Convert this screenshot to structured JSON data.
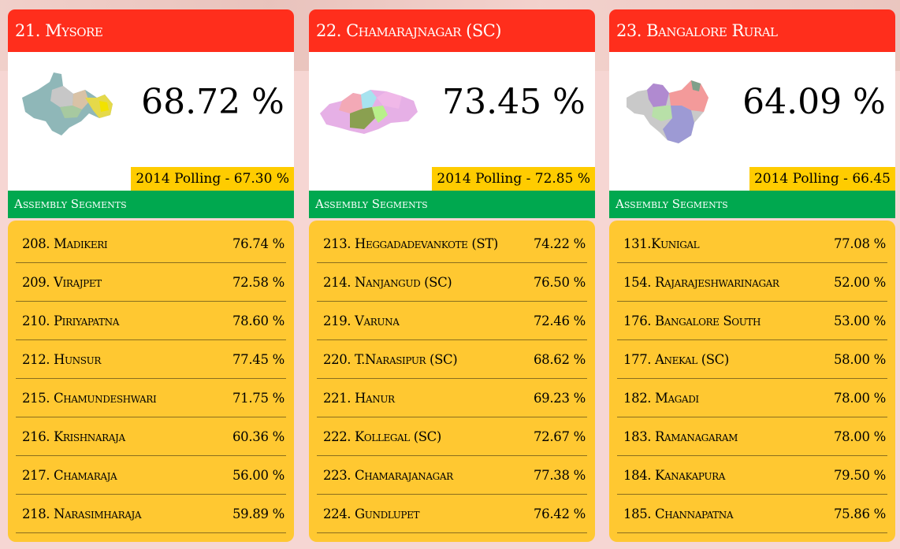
{
  "constituencies": [
    {
      "title": "21. Mysore",
      "turnout": "68.72 %",
      "polling_2014": "2014 Polling - 67.30 %",
      "segments_heading": "Assembly Segments",
      "map_icon": "mysore-map-icon",
      "segments": [
        {
          "name": "208. Madikeri",
          "value": "76.74 %"
        },
        {
          "name": "209. Virajpet",
          "value": "72.58 %"
        },
        {
          "name": "210. Piriyapatna",
          "value": "78.60 %"
        },
        {
          "name": "212. Hunsur",
          "value": "77.45 %"
        },
        {
          "name": "215. Chamundeshwari",
          "value": "71.75 %"
        },
        {
          "name": "216. Krishnaraja",
          "value": "60.36 %"
        },
        {
          "name": "217. Chamaraja",
          "value": "56.00 %"
        },
        {
          "name": "218. Narasimharaja",
          "value": "59.89 %"
        }
      ]
    },
    {
      "title": "22. Chamarajnagar (SC)",
      "turnout": "73.45 %",
      "polling_2014": "2014 Polling - 72.85 %",
      "segments_heading": "Assembly Segments",
      "map_icon": "chamarajnagar-map-icon",
      "segments": [
        {
          "name": "213. Heggadadevankote (ST)",
          "value": "74.22 %"
        },
        {
          "name": "214. Nanjangud (SC)",
          "value": "76.50 %"
        },
        {
          "name": "219. Varuna",
          "value": "72.46 %"
        },
        {
          "name": "220. T.Narasipur (SC)",
          "value": "68.62 %"
        },
        {
          "name": "221. Hanur",
          "value": "69.23 %"
        },
        {
          "name": "222. Kollegal (SC)",
          "value": "72.67 %"
        },
        {
          "name": "223. Chamarajanagar",
          "value": "77.38 %"
        },
        {
          "name": "224. Gundlupet",
          "value": "76.42 %"
        }
      ]
    },
    {
      "title": "23. Bangalore Rural",
      "turnout": "64.09 %",
      "polling_2014": "2014 Polling - 66.45",
      "segments_heading": "Assembly Segments",
      "map_icon": "bangalore-rural-map-icon",
      "segments": [
        {
          "name": "131.Kunigal",
          "value": "77.08 %"
        },
        {
          "name": "154. Rajarajeshwarinagar",
          "value": "52.00 %"
        },
        {
          "name": "176. Bangalore South",
          "value": "53.00 %"
        },
        {
          "name": "177. Anekal (SC)",
          "value": "58.00 %"
        },
        {
          "name": "182. Magadi",
          "value": "78.00 %"
        },
        {
          "name": "183. Ramanagaram",
          "value": "78.00 %"
        },
        {
          "name": "184. Kanakapura",
          "value": "79.50 %"
        },
        {
          "name": "185. Channapatna",
          "value": "75.86 %"
        }
      ]
    }
  ],
  "colors": {
    "header": "#ff2e1c",
    "polling_badge": "#ffcc00",
    "segments_bar": "#00a84f",
    "segments_panel": "#ffc831",
    "background": "#f6d6d3"
  }
}
